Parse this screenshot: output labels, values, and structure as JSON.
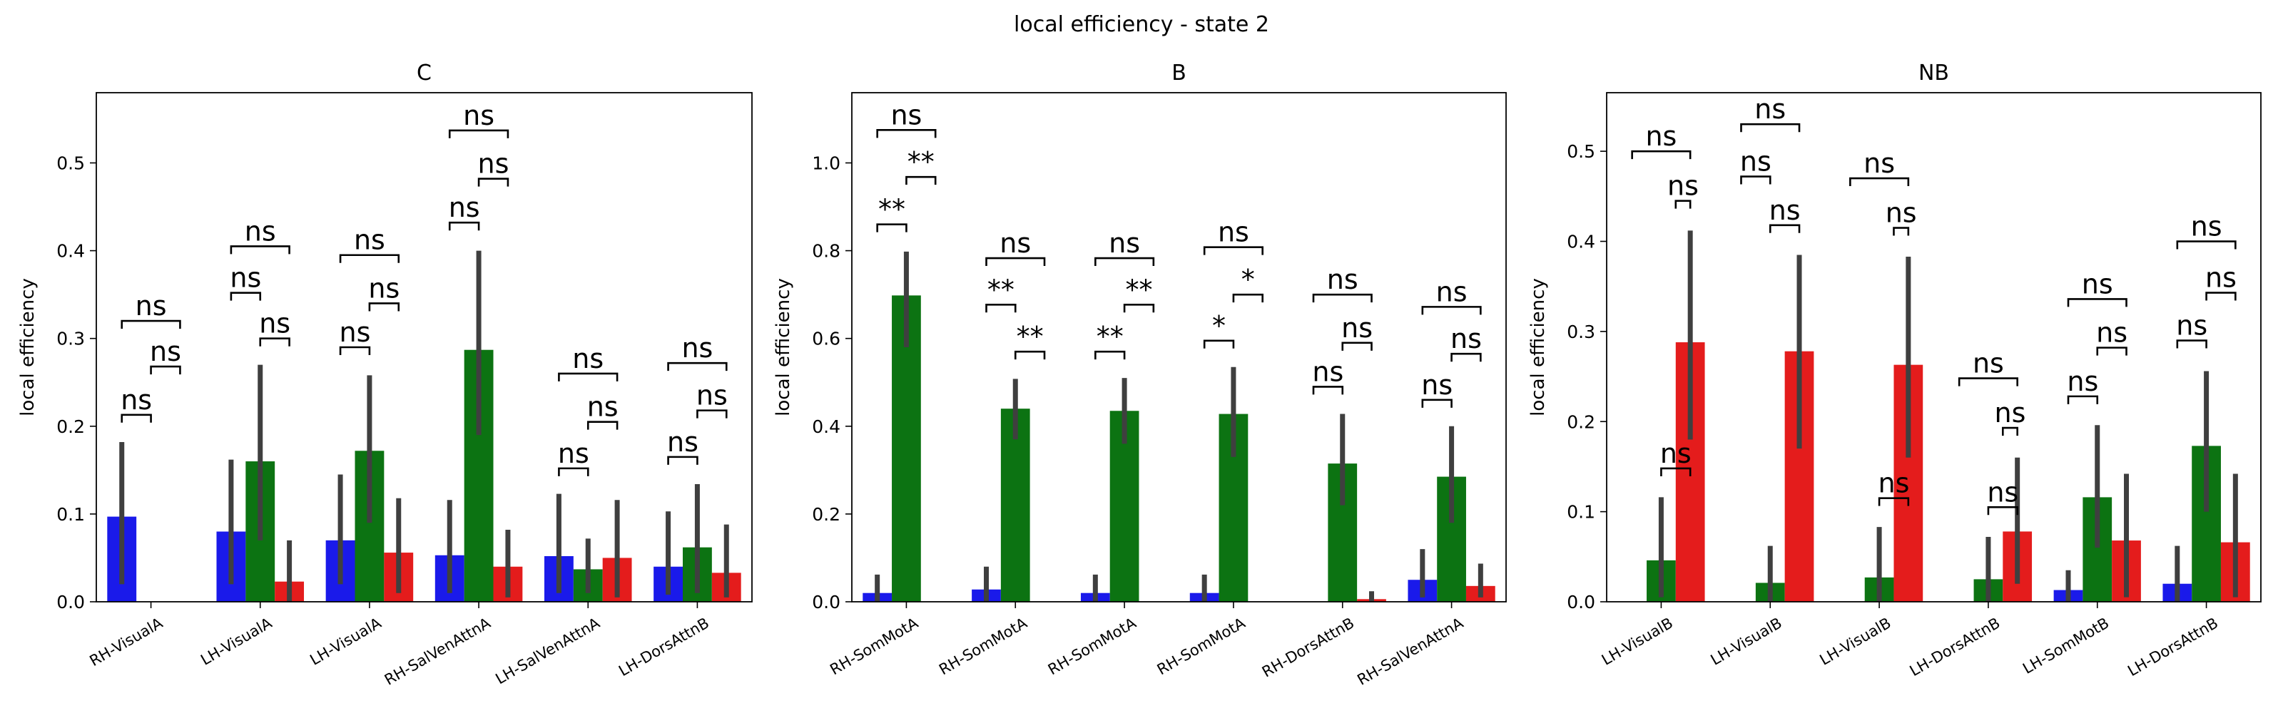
{
  "figure_title": "local efficiency - state 2",
  "colors": {
    "blue": "#1a1aea",
    "green": "#0c7312",
    "red": "#e41c1c",
    "error": "#3f3f3f"
  },
  "chart_data": [
    {
      "type": "bar",
      "title": "C",
      "ylabel": "local efficiency",
      "ylim": [
        0,
        0.58
      ],
      "yticks": [
        "0.0",
        "0.1",
        "0.2",
        "0.3",
        "0.4",
        "0.5"
      ],
      "categories": [
        "RH-VisualA",
        "LH-VisualA",
        "LH-VisualA",
        "RH-SalVenAttnA",
        "LH-SalVenAttnA",
        "LH-DorsAttnB"
      ],
      "bars": [
        [
          {
            "v": 0.097,
            "lo": 0.02,
            "hi": 0.182
          },
          null,
          null
        ],
        [
          {
            "v": 0.08,
            "lo": 0.02,
            "hi": 0.162
          },
          {
            "v": 0.16,
            "lo": 0.07,
            "hi": 0.27
          },
          {
            "v": 0.023,
            "lo": 0.0,
            "hi": 0.07
          }
        ],
        [
          {
            "v": 0.07,
            "lo": 0.02,
            "hi": 0.145
          },
          {
            "v": 0.172,
            "lo": 0.09,
            "hi": 0.258
          },
          {
            "v": 0.056,
            "lo": 0.01,
            "hi": 0.118
          }
        ],
        [
          {
            "v": 0.053,
            "lo": 0.01,
            "hi": 0.116
          },
          {
            "v": 0.287,
            "lo": 0.19,
            "hi": 0.4
          },
          {
            "v": 0.04,
            "lo": 0.005,
            "hi": 0.082
          }
        ],
        [
          {
            "v": 0.052,
            "lo": 0.01,
            "hi": 0.123
          },
          {
            "v": 0.037,
            "lo": 0.01,
            "hi": 0.072
          },
          {
            "v": 0.05,
            "lo": 0.005,
            "hi": 0.116
          }
        ],
        [
          {
            "v": 0.04,
            "lo": 0.008,
            "hi": 0.103
          },
          {
            "v": 0.062,
            "lo": 0.01,
            "hi": 0.134
          },
          {
            "v": 0.033,
            "lo": 0.005,
            "hi": 0.088
          }
        ]
      ],
      "annotations": [
        [
          {
            "a": 0,
            "b": 1,
            "y": 0.213,
            "label": "ns"
          },
          {
            "a": 1,
            "b": 2,
            "y": 0.268,
            "label": "ns"
          },
          {
            "a": 0,
            "b": 2,
            "y": 0.32,
            "label": "ns"
          }
        ],
        [
          {
            "a": 0,
            "b": 1,
            "y": 0.352,
            "label": "ns"
          },
          {
            "a": 1,
            "b": 2,
            "y": 0.3,
            "label": "ns"
          },
          {
            "a": 0,
            "b": 2,
            "y": 0.405,
            "label": "ns"
          }
        ],
        [
          {
            "a": 0,
            "b": 1,
            "y": 0.29,
            "label": "ns"
          },
          {
            "a": 1,
            "b": 2,
            "y": 0.34,
            "label": "ns"
          },
          {
            "a": 0,
            "b": 2,
            "y": 0.395,
            "label": "ns"
          }
        ],
        [
          {
            "a": 0,
            "b": 1,
            "y": 0.432,
            "label": "ns"
          },
          {
            "a": 1,
            "b": 2,
            "y": 0.482,
            "label": "ns"
          },
          {
            "a": 0,
            "b": 2,
            "y": 0.537,
            "label": "ns"
          }
        ],
        [
          {
            "a": 0,
            "b": 1,
            "y": 0.152,
            "label": "ns"
          },
          {
            "a": 1,
            "b": 2,
            "y": 0.205,
            "label": "ns"
          },
          {
            "a": 0,
            "b": 2,
            "y": 0.26,
            "label": "ns"
          }
        ],
        [
          {
            "a": 0,
            "b": 1,
            "y": 0.165,
            "label": "ns"
          },
          {
            "a": 1,
            "b": 2,
            "y": 0.218,
            "label": "ns"
          },
          {
            "a": 0,
            "b": 2,
            "y": 0.272,
            "label": "ns"
          }
        ]
      ]
    },
    {
      "type": "bar",
      "title": "B",
      "ylabel": "local efficiency",
      "ylim": [
        0,
        1.16
      ],
      "yticks": [
        "0.0",
        "0.2",
        "0.4",
        "0.6",
        "0.8",
        "1.0"
      ],
      "categories": [
        "RH-SomMotA",
        "RH-SomMotA",
        "RH-SomMotA",
        "RH-SomMotA",
        "RH-DorsAttnB",
        "RH-SalVenAttnA"
      ],
      "bars": [
        [
          {
            "v": 0.02,
            "lo": 0.0,
            "hi": 0.062
          },
          {
            "v": 0.698,
            "lo": 0.58,
            "hi": 0.798
          },
          null
        ],
        [
          {
            "v": 0.028,
            "lo": 0.0,
            "hi": 0.08
          },
          {
            "v": 0.44,
            "lo": 0.37,
            "hi": 0.508
          },
          null
        ],
        [
          {
            "v": 0.02,
            "lo": 0.0,
            "hi": 0.062
          },
          {
            "v": 0.435,
            "lo": 0.36,
            "hi": 0.51
          },
          null
        ],
        [
          {
            "v": 0.02,
            "lo": 0.0,
            "hi": 0.062
          },
          {
            "v": 0.428,
            "lo": 0.33,
            "hi": 0.535
          },
          null
        ],
        [
          null,
          {
            "v": 0.315,
            "lo": 0.22,
            "hi": 0.428
          },
          {
            "v": 0.006,
            "lo": 0.0,
            "hi": 0.024
          }
        ],
        [
          {
            "v": 0.05,
            "lo": 0.01,
            "hi": 0.12
          },
          {
            "v": 0.285,
            "lo": 0.18,
            "hi": 0.4
          },
          {
            "v": 0.036,
            "lo": 0.01,
            "hi": 0.087
          }
        ]
      ],
      "annotations": [
        [
          {
            "a": 0,
            "b": 1,
            "y": 0.86,
            "label": "**"
          },
          {
            "a": 1,
            "b": 2,
            "y": 0.968,
            "label": "**"
          },
          {
            "a": 0,
            "b": 2,
            "y": 1.075,
            "label": "ns"
          }
        ],
        [
          {
            "a": 0,
            "b": 1,
            "y": 0.677,
            "label": "**"
          },
          {
            "a": 1,
            "b": 2,
            "y": 0.57,
            "label": "**"
          },
          {
            "a": 0,
            "b": 2,
            "y": 0.783,
            "label": "ns"
          }
        ],
        [
          {
            "a": 0,
            "b": 1,
            "y": 0.57,
            "label": "**"
          },
          {
            "a": 1,
            "b": 2,
            "y": 0.677,
            "label": "**"
          },
          {
            "a": 0,
            "b": 2,
            "y": 0.783,
            "label": "ns"
          }
        ],
        [
          {
            "a": 0,
            "b": 1,
            "y": 0.595,
            "label": "*"
          },
          {
            "a": 1,
            "b": 2,
            "y": 0.7,
            "label": "*"
          },
          {
            "a": 0,
            "b": 2,
            "y": 0.808,
            "label": "ns"
          }
        ],
        [
          {
            "a": 0,
            "b": 1,
            "y": 0.49,
            "label": "ns"
          },
          {
            "a": 1,
            "b": 2,
            "y": 0.59,
            "label": "ns"
          },
          {
            "a": 0,
            "b": 2,
            "y": 0.7,
            "label": "ns"
          }
        ],
        [
          {
            "a": 0,
            "b": 1,
            "y": 0.46,
            "label": "ns"
          },
          {
            "a": 1,
            "b": 2,
            "y": 0.565,
            "label": "ns"
          },
          {
            "a": 0,
            "b": 2,
            "y": 0.672,
            "label": "ns"
          }
        ]
      ]
    },
    {
      "type": "bar",
      "title": "NB",
      "ylabel": "local efficiency",
      "ylim": [
        0,
        0.565
      ],
      "yticks": [
        "0.0",
        "0.1",
        "0.2",
        "0.3",
        "0.4",
        "0.5"
      ],
      "categories": [
        "LH-VisualB",
        "LH-VisualB",
        "LH-VisualB",
        "LH-DorsAttnB",
        "LH-SomMotB",
        "LH-DorsAttnB"
      ],
      "bars": [
        [
          null,
          {
            "v": 0.046,
            "lo": 0.005,
            "hi": 0.116
          },
          {
            "v": 0.288,
            "lo": 0.18,
            "hi": 0.412
          }
        ],
        [
          null,
          {
            "v": 0.021,
            "lo": 0.0,
            "hi": 0.062
          },
          {
            "v": 0.278,
            "lo": 0.17,
            "hi": 0.385
          }
        ],
        [
          null,
          {
            "v": 0.027,
            "lo": 0.0,
            "hi": 0.083
          },
          {
            "v": 0.263,
            "lo": 0.16,
            "hi": 0.383
          }
        ],
        [
          null,
          {
            "v": 0.025,
            "lo": 0.0,
            "hi": 0.072
          },
          {
            "v": 0.078,
            "lo": 0.02,
            "hi": 0.16
          }
        ],
        [
          {
            "v": 0.013,
            "lo": 0.0,
            "hi": 0.035
          },
          {
            "v": 0.116,
            "lo": 0.06,
            "hi": 0.196
          },
          {
            "v": 0.068,
            "lo": 0.005,
            "hi": 0.142
          }
        ],
        [
          {
            "v": 0.02,
            "lo": 0.0,
            "hi": 0.062
          },
          {
            "v": 0.173,
            "lo": 0.1,
            "hi": 0.256
          },
          {
            "v": 0.066,
            "lo": 0.005,
            "hi": 0.142
          }
        ]
      ],
      "annotations": [
        [
          {
            "a": 1,
            "b": 2,
            "y": 0.148,
            "label": "ns"
          },
          {
            "a": 1.5,
            "b": 2,
            "y": 0.445,
            "label": "ns"
          },
          {
            "a": 0,
            "b": 2,
            "y": 0.5,
            "label": "ns"
          }
        ],
        [
          {
            "a": 0,
            "b": 1,
            "y": 0.472,
            "label": "ns"
          },
          {
            "a": 1,
            "b": 2,
            "y": 0.418,
            "label": "ns"
          },
          {
            "a": 0,
            "b": 2,
            "y": 0.53,
            "label": "ns"
          }
        ],
        [
          {
            "a": 1,
            "b": 2,
            "y": 0.115,
            "label": "ns"
          },
          {
            "a": 1.5,
            "b": 2,
            "y": 0.415,
            "label": "ns"
          },
          {
            "a": 0,
            "b": 2,
            "y": 0.47,
            "label": "ns"
          }
        ],
        [
          {
            "a": 1,
            "b": 2,
            "y": 0.105,
            "label": "ns"
          },
          {
            "a": 1.5,
            "b": 2,
            "y": 0.193,
            "label": "ns"
          },
          {
            "a": 0,
            "b": 2,
            "y": 0.248,
            "label": "ns"
          }
        ],
        [
          {
            "a": 0,
            "b": 1,
            "y": 0.228,
            "label": "ns"
          },
          {
            "a": 1,
            "b": 2,
            "y": 0.282,
            "label": "ns"
          },
          {
            "a": 0,
            "b": 2,
            "y": 0.336,
            "label": "ns"
          }
        ],
        [
          {
            "a": 0,
            "b": 1,
            "y": 0.29,
            "label": "ns"
          },
          {
            "a": 1,
            "b": 2,
            "y": 0.343,
            "label": "ns"
          },
          {
            "a": 0,
            "b": 2,
            "y": 0.4,
            "label": "ns"
          }
        ]
      ]
    }
  ]
}
